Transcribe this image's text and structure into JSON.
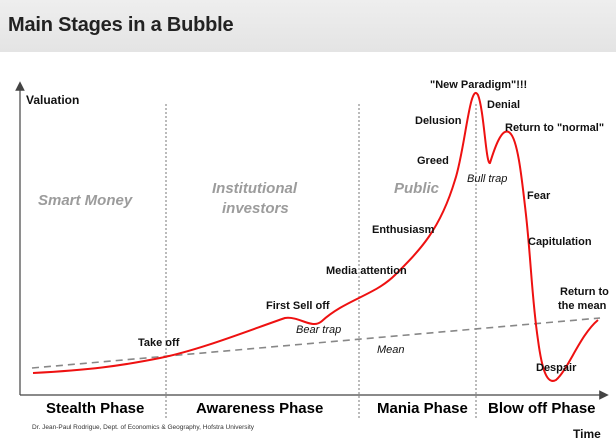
{
  "title": "Main Stages in a Bubble",
  "axes": {
    "y_label": "Valuation",
    "x_label": "Time"
  },
  "actors": {
    "smart_money": "Smart Money",
    "institutional_line1": "Institutional",
    "institutional_line2": "investors",
    "public": "Public"
  },
  "phases": {
    "stealth": "Stealth Phase",
    "awareness": "Awareness Phase",
    "mania": "Mania Phase",
    "blowoff": "Blow off Phase"
  },
  "stages": {
    "new_paradigm": "\"New Paradigm\"!!!",
    "denial": "Denial",
    "delusion": "Delusion",
    "return_to_normal": "Return to \"normal\"",
    "greed": "Greed",
    "bull_trap": "Bull trap",
    "fear": "Fear",
    "enthusiasm": "Enthusiasm",
    "capitulation": "Capitulation",
    "media_attention": "Media attention",
    "return_to_mean_line1": "Return to",
    "return_to_mean_line2": "the mean",
    "first_sell_off": "First Sell off",
    "bear_trap": "Bear trap",
    "take_off": "Take off",
    "mean": "Mean",
    "despair": "Despair"
  },
  "credit": "Dr. Jean-Paul Rodrigue, Dept. of Economics & Geography, Hofstra University",
  "colors": {
    "curve": "#ee1111",
    "mean_line": "#888888",
    "axis": "#444444",
    "phase_divider": "#777777",
    "actor_text": "#9c9c9c"
  }
}
